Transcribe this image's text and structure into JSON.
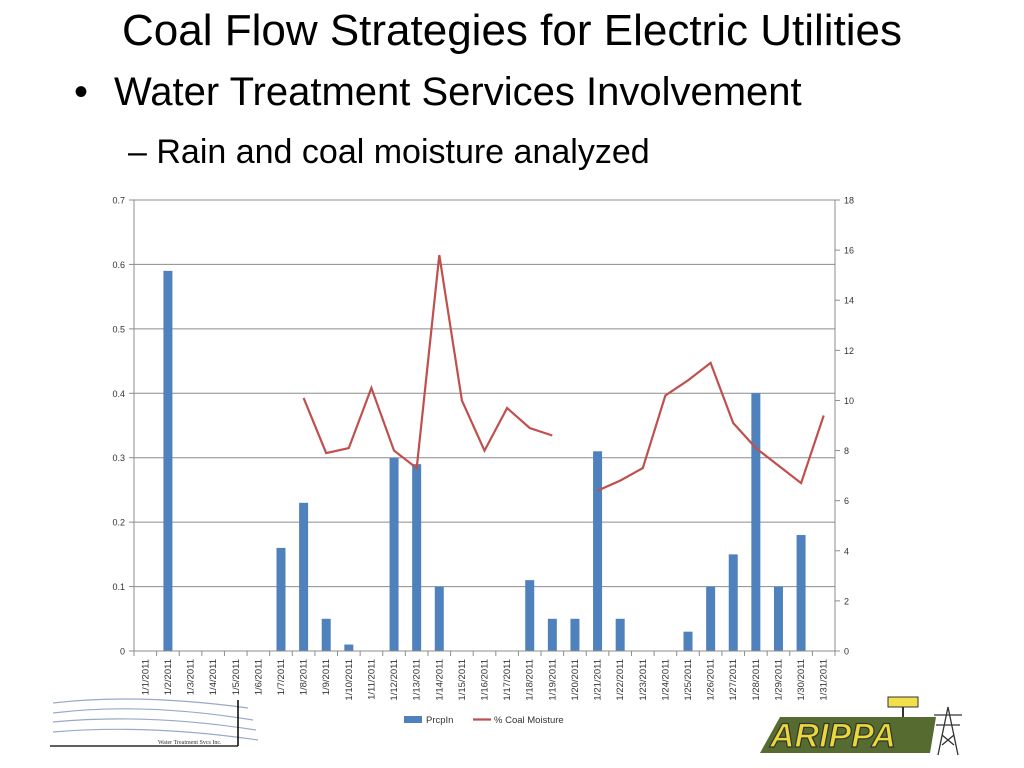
{
  "slide": {
    "title": "Coal Flow Strategies for Electric Utilities",
    "bullet": "Water Treatment Services Involvement",
    "sub_bullet": "Rain and coal moisture analyzed",
    "left_logo_text": "Water Treatment Svcs Inc.",
    "right_logo_text": "ARIPPA"
  },
  "chart_data": {
    "type": "bar",
    "title": "",
    "xlabel": "",
    "ylabel": "",
    "categories": [
      "1/1/2011",
      "1/2/2011",
      "1/3/2011",
      "1/4/2011",
      "1/5/2011",
      "1/6/2011",
      "1/7/2011",
      "1/8/2011",
      "1/9/2011",
      "1/10/2011",
      "1/11/2011",
      "1/12/2011",
      "1/13/2011",
      "1/14/2011",
      "1/15/2011",
      "1/16/2011",
      "1/17/2011",
      "1/18/2011",
      "1/19/2011",
      "1/20/2011",
      "1/21/2011",
      "1/22/2011",
      "1/23/2011",
      "1/24/2011",
      "1/25/2011",
      "1/26/2011",
      "1/27/2011",
      "1/28/2011",
      "1/29/2011",
      "1/30/2011",
      "1/31/2011"
    ],
    "series": [
      {
        "name": "PrcpIn",
        "type": "bar",
        "axis": "left",
        "color": "#4F81BD",
        "values": [
          0,
          0.59,
          0,
          0,
          0,
          0,
          0.16,
          0.23,
          0.05,
          0.01,
          0,
          0.3,
          0.29,
          0.1,
          0,
          0,
          0,
          0.11,
          0.05,
          0.05,
          0.31,
          0.05,
          0,
          0,
          0.03,
          0.1,
          0.15,
          0.4,
          0.1,
          0.18,
          0
        ]
      },
      {
        "name": "% Coal Moisture",
        "type": "line",
        "axis": "right",
        "color": "#C0504D",
        "values": [
          null,
          null,
          null,
          null,
          null,
          null,
          null,
          10.1,
          7.9,
          8.1,
          10.5,
          8.0,
          7.3,
          15.8,
          10.0,
          8.0,
          9.7,
          8.9,
          8.6,
          null,
          6.4,
          6.8,
          7.3,
          10.2,
          10.8,
          11.5,
          9.1,
          8.1,
          7.4,
          6.7,
          9.4
        ]
      }
    ],
    "y_left": {
      "min": 0,
      "max": 0.7,
      "step": 0.1,
      "ticks": [
        "0",
        "0.1",
        "0.2",
        "0.3",
        "0.4",
        "0.5",
        "0.6",
        "0.7"
      ]
    },
    "y_right": {
      "min": 0,
      "max": 18,
      "step": 2,
      "ticks": [
        "0",
        "2",
        "4",
        "6",
        "8",
        "10",
        "12",
        "14",
        "16",
        "18"
      ]
    },
    "grid": true,
    "legend_position": "bottom"
  }
}
